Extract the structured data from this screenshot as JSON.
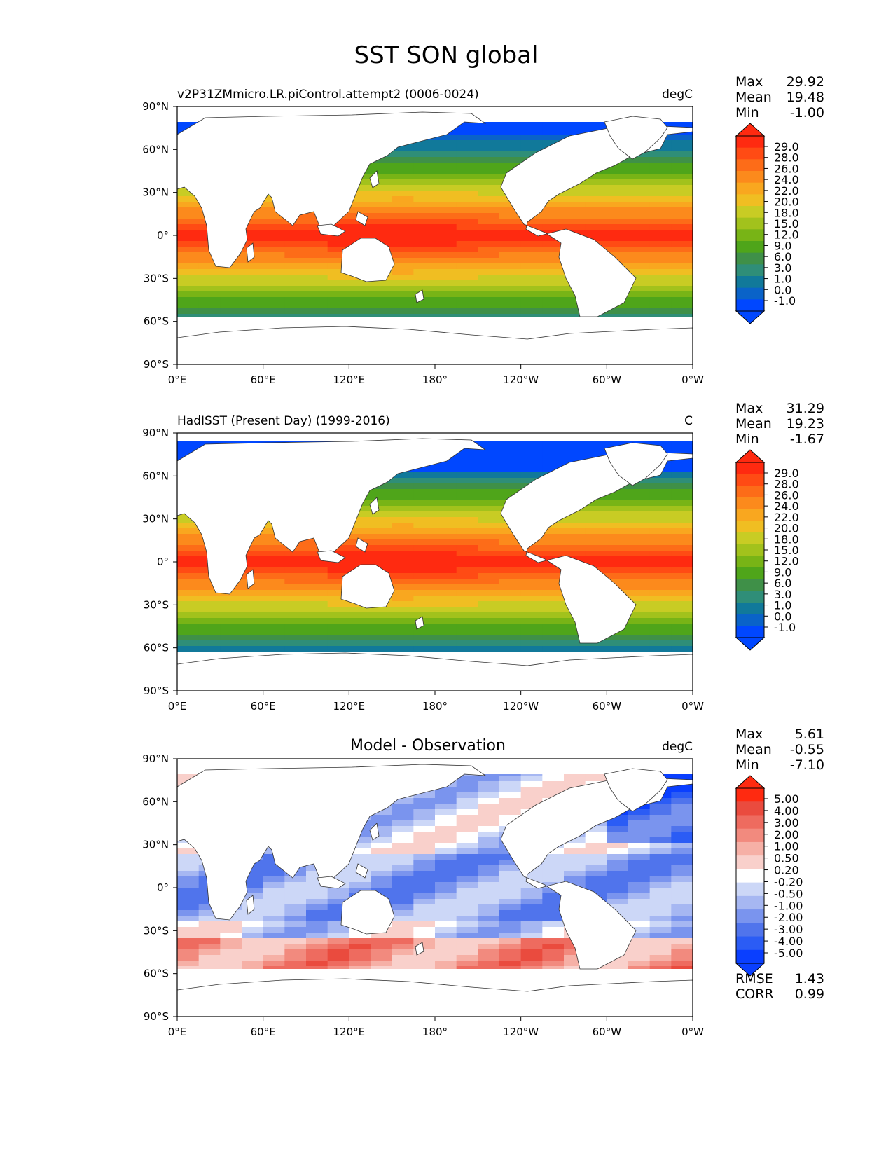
{
  "figure": {
    "title": "SST SON global"
  },
  "colors": {
    "sst_levels": [
      "#0047ff",
      "#0a63c8",
      "#11799a",
      "#2f8e78",
      "#3f9048",
      "#4fa51a",
      "#78b416",
      "#a2c21c",
      "#c8cc24",
      "#f0be22",
      "#f9a71f",
      "#fc8a1c",
      "#fd6c18",
      "#ff4b14",
      "#ff2a10"
    ],
    "diff_levels": [
      "#0a3fff",
      "#2b5cf5",
      "#5074ec",
      "#7a94ee",
      "#a6b7f2",
      "#ccd7f7",
      "#ffffff",
      "#f9d0cb",
      "#f6b0a6",
      "#f28a7e",
      "#ee6b5f",
      "#ea4b3e",
      "#ff2a10"
    ],
    "coast": "#333333"
  },
  "panels": [
    {
      "left_title": "v2P31ZMmicro.LR.piControl.attempt2 (0006-0024)",
      "center_title": "",
      "units": "degC",
      "stats": [
        {
          "label": "Max",
          "value": "29.92"
        },
        {
          "label": "Mean",
          "value": "19.48"
        },
        {
          "label": "Min",
          "value": "-1.00"
        }
      ],
      "colorbar_ticks": [
        "29.0",
        "28.0",
        "26.0",
        "24.0",
        "22.0",
        "20.0",
        "18.0",
        "15.0",
        "12.0",
        "9.0",
        "6.0",
        "3.0",
        "1.0",
        "0.0",
        "-1.0"
      ],
      "extra_stats": []
    },
    {
      "left_title": "HadISST (Present Day) (1999-2016)",
      "center_title": "",
      "units": "C",
      "stats": [
        {
          "label": "Max",
          "value": "31.29"
        },
        {
          "label": "Mean",
          "value": "19.23"
        },
        {
          "label": "Min",
          "value": "-1.67"
        }
      ],
      "colorbar_ticks": [
        "29.0",
        "28.0",
        "26.0",
        "24.0",
        "22.0",
        "20.0",
        "18.0",
        "15.0",
        "12.0",
        "9.0",
        "6.0",
        "3.0",
        "1.0",
        "0.0",
        "-1.0"
      ],
      "extra_stats": []
    },
    {
      "left_title": "",
      "center_title": "Model - Observation",
      "units": "degC",
      "stats": [
        {
          "label": "Max",
          "value": "5.61"
        },
        {
          "label": "Mean",
          "value": "-0.55"
        },
        {
          "label": "Min",
          "value": "-7.10"
        }
      ],
      "colorbar_ticks": [
        "5.00",
        "4.00",
        "3.00",
        "2.00",
        "1.00",
        "0.50",
        "0.20",
        "-0.20",
        "-0.50",
        "-1.00",
        "-2.00",
        "-3.00",
        "-4.00",
        "-5.00"
      ],
      "extra_stats": [
        {
          "label": "RMSE",
          "value": "1.43"
        },
        {
          "label": "CORR",
          "value": "0.99"
        }
      ]
    }
  ],
  "chart_data": [
    {
      "type": "heatmap",
      "title": "v2P31ZMmicro.LR.piControl.attempt2 (0006-0024)",
      "units": "degC",
      "x_ticks": [
        "0°E",
        "60°E",
        "120°E",
        "180°",
        "120°W",
        "60°W",
        "0°W"
      ],
      "y_ticks": [
        "90°N",
        "60°N",
        "30°N",
        "0°",
        "30°S",
        "60°S",
        "90°S"
      ],
      "xlim": [
        0,
        360
      ],
      "ylim": [
        -90,
        90
      ],
      "levels": [
        -1,
        0,
        1,
        3,
        6,
        9,
        12,
        15,
        18,
        20,
        22,
        24,
        26,
        28,
        29
      ],
      "max": 29.92,
      "mean": 19.48,
      "min": -1.0
    },
    {
      "type": "heatmap",
      "title": "HadISST (Present Day) (1999-2016)",
      "units": "C",
      "x_ticks": [
        "0°E",
        "60°E",
        "120°E",
        "180°",
        "120°W",
        "60°W",
        "0°W"
      ],
      "y_ticks": [
        "90°N",
        "60°N",
        "30°N",
        "0°",
        "30°S",
        "60°S",
        "90°S"
      ],
      "xlim": [
        0,
        360
      ],
      "ylim": [
        -90,
        90
      ],
      "levels": [
        -1,
        0,
        1,
        3,
        6,
        9,
        12,
        15,
        18,
        20,
        22,
        24,
        26,
        28,
        29
      ],
      "max": 31.29,
      "mean": 19.23,
      "min": -1.67
    },
    {
      "type": "heatmap",
      "title": "Model - Observation",
      "units": "degC",
      "x_ticks": [
        "0°E",
        "60°E",
        "120°E",
        "180°",
        "120°W",
        "60°W",
        "0°W"
      ],
      "y_ticks": [
        "90°N",
        "60°N",
        "30°N",
        "0°",
        "30°S",
        "60°S",
        "90°S"
      ],
      "xlim": [
        0,
        360
      ],
      "ylim": [
        -90,
        90
      ],
      "levels": [
        -5,
        -4,
        -3,
        -2,
        -1,
        -0.5,
        -0.2,
        0.2,
        0.5,
        1,
        2,
        3,
        4,
        5
      ],
      "max": 5.61,
      "mean": -0.55,
      "min": -7.1,
      "rmse": 1.43,
      "corr": 0.99
    }
  ]
}
